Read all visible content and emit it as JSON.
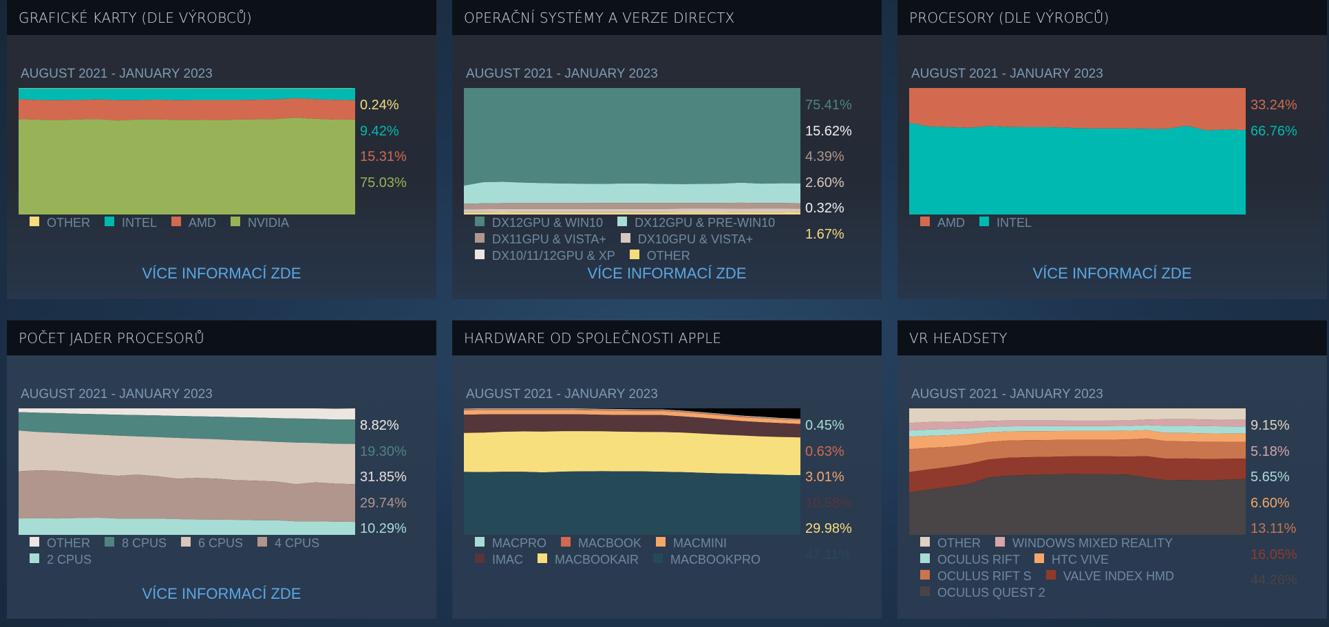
{
  "panels": [
    {
      "title": "GRAFICKÉ KARTY (DLE VÝROBCŮ)",
      "date_range": "AUGUST 2021 - JANUARY 2023",
      "link": "VÍCE INFORMACÍ ZDE"
    },
    {
      "title": "OPERAČNÍ SYSTÉMY A VERZE DIRECTX",
      "date_range": "AUGUST 2021 - JANUARY 2023",
      "link": "VÍCE INFORMACÍ ZDE"
    },
    {
      "title": "PROCESORY (DLE VÝROBCŮ)",
      "date_range": "AUGUST 2021 - JANUARY 2023",
      "link": "VÍCE INFORMACÍ ZDE"
    },
    {
      "title": "POČET JADER PROCESORŮ",
      "date_range": "AUGUST 2021 - JANUARY 2023",
      "link": "VÍCE INFORMACÍ ZDE"
    },
    {
      "title": "HARDWARE OD SPOLEČNOSTI APPLE",
      "date_range": "AUGUST 2021 - JANUARY 2023",
      "link": ""
    },
    {
      "title": "VR HEADSETY",
      "date_range": "AUGUST 2021 - JANUARY 2023",
      "link": ""
    }
  ],
  "chart_data": [
    {
      "type": "area",
      "stacked": true,
      "title": "GRAFICKÉ KARTY (DLE VÝROBCŮ)",
      "subtitle": "AUGUST 2021 - JANUARY 2023",
      "ylim": [
        0,
        100
      ],
      "x_count": 18,
      "series": [
        {
          "name": "OTHER",
          "color": "#f7dc7e",
          "current": "0.24%",
          "values": [
            0.3,
            0.3,
            0.3,
            0.3,
            0.3,
            0.3,
            0.3,
            0.3,
            0.3,
            0.3,
            0.3,
            0.3,
            0.3,
            0.3,
            0.3,
            0.3,
            0.3,
            0.24
          ]
        },
        {
          "name": "INTEL",
          "color": "#00bab2",
          "current": "9.42%",
          "values": [
            8.5,
            9.2,
            9.4,
            9.2,
            8.7,
            9.4,
            9.3,
            8.9,
            9.4,
            9.2,
            9.2,
            9.2,
            9.0,
            8.7,
            7.8,
            8.5,
            9.1,
            9.42
          ]
        },
        {
          "name": "AMD",
          "color": "#d36a4f",
          "current": "15.31%",
          "values": [
            15.8,
            15.5,
            15.6,
            15.4,
            15.5,
            16.0,
            15.3,
            15.6,
            15.5,
            15.7,
            15.8,
            15.5,
            15.5,
            15.5,
            15.3,
            15.6,
            15.6,
            15.31
          ]
        },
        {
          "name": "NVIDIA",
          "color": "#98b357",
          "current": "75.03%",
          "values": [
            75.4,
            75.0,
            74.7,
            75.1,
            75.5,
            74.3,
            75.1,
            75.2,
            74.8,
            74.8,
            74.7,
            75.0,
            75.2,
            75.5,
            76.6,
            75.6,
            75.0,
            75.03
          ]
        }
      ]
    },
    {
      "type": "area",
      "stacked": true,
      "title": "OPERAČNÍ SYSTÉMY A VERZE DIRECTX",
      "subtitle": "AUGUST 2021 - JANUARY 2023",
      "ylim": [
        0,
        100
      ],
      "x_count": 18,
      "series": [
        {
          "name": "DX12GPU & WIN10",
          "color": "#4e857f",
          "current": "75.41%",
          "values": [
            77.2,
            74.4,
            74.2,
            74.8,
            75.2,
            75.5,
            75.7,
            75.8,
            75.5,
            75.5,
            75.8,
            75.9,
            75.8,
            75.6,
            74.9,
            75.6,
            75.3,
            75.41
          ]
        },
        {
          "name": "DX12GPU & PRE-WIN10",
          "color": "#a8ddd6",
          "current": "15.62%",
          "values": [
            14.3,
            16.8,
            16.8,
            16.2,
            15.8,
            15.5,
            15.3,
            15.1,
            15.3,
            15.4,
            15.0,
            14.9,
            15.0,
            15.2,
            15.8,
            15.3,
            15.6,
            15.62
          ]
        },
        {
          "name": "DX11GPU & VISTA+",
          "color": "#b0968c",
          "current": "4.39%",
          "values": [
            4.3,
            4.5,
            4.5,
            4.6,
            4.6,
            4.6,
            4.6,
            4.7,
            4.8,
            4.7,
            4.7,
            4.6,
            4.6,
            4.6,
            4.6,
            4.5,
            4.5,
            4.39
          ]
        },
        {
          "name": "DX10GPU & VISTA+",
          "color": "#d8c7bb",
          "current": "2.60%",
          "values": [
            2.4,
            2.5,
            2.6,
            2.6,
            2.6,
            2.6,
            2.6,
            2.6,
            2.6,
            2.6,
            2.7,
            2.7,
            2.7,
            2.7,
            2.7,
            2.6,
            2.6,
            2.6
          ]
        },
        {
          "name": "DX10/11/12GPU & XP",
          "color": "#ede6e0",
          "current": "0.32%",
          "values": [
            0.4,
            0.4,
            0.4,
            0.4,
            0.4,
            0.4,
            0.4,
            0.4,
            0.4,
            0.4,
            0.4,
            0.4,
            0.4,
            0.4,
            0.4,
            0.4,
            0.4,
            0.32
          ]
        },
        {
          "name": "OTHER",
          "color": "#f7dc7e",
          "current": "1.67%",
          "values": [
            1.4,
            1.4,
            1.5,
            1.4,
            1.4,
            1.4,
            1.4,
            1.4,
            1.4,
            1.4,
            1.4,
            1.5,
            1.5,
            1.5,
            1.6,
            1.6,
            1.6,
            1.67
          ]
        }
      ]
    },
    {
      "type": "area",
      "stacked": true,
      "title": "PROCESORY (DLE VÝROBCŮ)",
      "subtitle": "AUGUST 2021 - JANUARY 2023",
      "ylim": [
        0,
        100
      ],
      "x_count": 18,
      "series": [
        {
          "name": "AMD",
          "color": "#d36a4f",
          "current": "33.24%",
          "values": [
            27.5,
            30.5,
            31.0,
            31.5,
            30.2,
            30.8,
            31.0,
            31.0,
            31.4,
            32.0,
            32.0,
            32.0,
            32.3,
            32.5,
            29.9,
            33.5,
            32.9,
            33.24
          ]
        },
        {
          "name": "INTEL",
          "color": "#00bab2",
          "current": "66.76%",
          "values": [
            72.5,
            69.5,
            69.0,
            68.5,
            69.8,
            69.2,
            69.0,
            69.0,
            68.6,
            68.0,
            68.0,
            68.0,
            67.7,
            67.5,
            70.1,
            66.5,
            67.1,
            66.76
          ]
        }
      ]
    },
    {
      "type": "area",
      "stacked": true,
      "title": "POČET JADER PROCESORŮ",
      "subtitle": "AUGUST 2021 - JANUARY 2023",
      "ylim": [
        0,
        100
      ],
      "x_count": 18,
      "series": [
        {
          "name": "OTHER",
          "color": "#ede6e0",
          "current": "8.82%",
          "values": [
            3.0,
            3.5,
            3.8,
            4.3,
            4.6,
            5.0,
            5.3,
            5.6,
            6.0,
            6.3,
            6.6,
            7.0,
            7.3,
            7.7,
            8.0,
            8.3,
            8.6,
            8.82
          ]
        },
        {
          "name": "8 CPUS",
          "color": "#4e857f",
          "current": "19.30%",
          "values": [
            14.5,
            15.2,
            15.5,
            15.8,
            16.2,
            16.5,
            16.8,
            17.1,
            17.3,
            17.6,
            17.8,
            18.1,
            18.4,
            18.7,
            19.0,
            19.0,
            19.2,
            19.3
          ]
        },
        {
          "name": "6 CPUS",
          "color": "#d8c7bb",
          "current": "31.85%",
          "values": [
            32.3,
            30.2,
            30.1,
            30.4,
            31.3,
            31.8,
            30.3,
            31.0,
            32.3,
            31.1,
            31.2,
            31.7,
            31.5,
            31.4,
            33.0,
            31.2,
            31.5,
            31.85
          ]
        },
        {
          "name": "4 CPUS",
          "color": "#b0968c",
          "current": "29.74%",
          "values": [
            37.2,
            38.0,
            37.6,
            36.2,
            34.3,
            33.8,
            34.7,
            33.4,
            31.9,
            32.8,
            32.3,
            31.3,
            31.2,
            30.7,
            29.3,
            30.8,
            30.0,
            29.74
          ]
        },
        {
          "name": "2 CPUS",
          "color": "#a8ddd6",
          "current": "10.29%",
          "values": [
            13.0,
            13.1,
            13.0,
            13.3,
            13.6,
            12.9,
            12.9,
            12.9,
            12.5,
            12.2,
            12.1,
            11.9,
            11.6,
            11.5,
            10.7,
            10.7,
            10.5,
            10.29
          ]
        }
      ]
    },
    {
      "type": "area",
      "stacked": true,
      "title": "HARDWARE OD SPOLEČNOSTI APPLE",
      "subtitle": "AUGUST 2021 - JANUARY 2023",
      "ylim": [
        0,
        100
      ],
      "x_count": 18,
      "series": [
        {
          "name": "MACPRO",
          "color": "#a8ddd6",
          "current": "0.45%",
          "values": [
            0.5,
            0.5,
            0.5,
            0.5,
            0.5,
            0.5,
            0.5,
            0.5,
            0.5,
            0.5,
            0.5,
            0.5,
            0.5,
            0.5,
            0.5,
            0.5,
            0.5,
            0.45
          ]
        },
        {
          "name": "MACBOOK",
          "color": "#d36a4f",
          "current": "0.63%",
          "values": [
            0.8,
            0.8,
            0.8,
            0.8,
            0.8,
            0.8,
            0.8,
            0.8,
            0.8,
            0.7,
            0.7,
            0.7,
            0.7,
            0.7,
            0.7,
            0.7,
            0.6,
            0.63
          ]
        },
        {
          "name": "MACMINI",
          "color": "#f5a66a",
          "current": "3.01%",
          "values": [
            3.5,
            3.5,
            3.4,
            3.4,
            3.4,
            3.4,
            3.4,
            3.4,
            3.3,
            3.3,
            3.3,
            3.3,
            3.2,
            3.2,
            3.1,
            3.1,
            3.0,
            3.01
          ]
        },
        {
          "name": "IMAC",
          "color": "#55363b",
          "current": "10.58%",
          "values": [
            14.4,
            14.4,
            13.8,
            13.5,
            13.6,
            13.3,
            13.2,
            13.0,
            13.2,
            13.3,
            13.4,
            12.8,
            12.5,
            12.0,
            11.4,
            11.2,
            10.9,
            10.58
          ]
        },
        {
          "name": "MACBOOKAIR",
          "color": "#f7df7e",
          "current": "29.98%",
          "values": [
            30.8,
            31.1,
            31.6,
            31.9,
            32.3,
            32.0,
            31.8,
            31.6,
            31.4,
            31.2,
            31.4,
            31.3,
            31.0,
            30.7,
            30.3,
            30.1,
            30.0,
            29.98
          ]
        },
        {
          "name": "MACBOOKPRO",
          "color": "#264958",
          "current": "47.11%",
          "values": [
            49.8,
            49.7,
            49.9,
            50.0,
            49.8,
            50.0,
            50.2,
            50.3,
            50.2,
            50.2,
            49.9,
            49.6,
            49.1,
            48.6,
            48.3,
            47.8,
            47.4,
            47.11
          ]
        }
      ]
    },
    {
      "type": "area",
      "stacked": true,
      "title": "VR HEADSETY",
      "subtitle": "AUGUST 2021 - JANUARY 2023",
      "ylim": [
        0,
        100
      ],
      "x_count": 18,
      "series": [
        {
          "name": "OTHER",
          "color": "#e0d2c0",
          "current": "9.15%",
          "values": [
            11.5,
            10.8,
            10.6,
            10.4,
            9.9,
            9.6,
            9.6,
            9.6,
            9.5,
            9.5,
            9.5,
            9.6,
            8.8,
            8.6,
            8.5,
            8.8,
            9.0,
            9.15
          ]
        },
        {
          "name": "WINDOWS MIXED REALITY",
          "color": "#d6a5a8",
          "current": "5.18%",
          "values": [
            6.0,
            6.0,
            5.8,
            5.5,
            4.8,
            4.6,
            4.5,
            4.5,
            4.5,
            4.5,
            4.5,
            4.2,
            4.5,
            5.2,
            5.3,
            5.3,
            5.2,
            5.18
          ]
        },
        {
          "name": "OCULUS RIFT",
          "color": "#a8ddd6",
          "current": "5.65%",
          "values": [
            5.0,
            4.9,
            4.8,
            4.5,
            4.3,
            4.0,
            4.0,
            4.0,
            3.9,
            3.9,
            3.9,
            3.9,
            4.0,
            5.6,
            5.6,
            5.7,
            5.7,
            5.65
          ]
        },
        {
          "name": "HTC VIVE",
          "color": "#f5a66a",
          "current": "6.60%",
          "values": [
            9.8,
            9.5,
            9.3,
            8.6,
            7.5,
            7.2,
            7.0,
            6.9,
            6.9,
            6.9,
            6.9,
            6.9,
            6.5,
            6.6,
            6.7,
            6.7,
            6.7,
            6.6
          ]
        },
        {
          "name": "OCULUS RIFT S",
          "color": "#c9754e",
          "current": "13.11%",
          "values": [
            18.0,
            17.0,
            15.8,
            14.9,
            14.0,
            13.7,
            13.5,
            13.3,
            13.2,
            13.1,
            13.1,
            13.5,
            14.0,
            13.8,
            13.5,
            13.5,
            13.3,
            13.11
          ]
        },
        {
          "name": "VALVE INDEX HMD",
          "color": "#8f3a2c",
          "current": "16.05%",
          "values": [
            16.0,
            16.0,
            15.9,
            15.9,
            14.2,
            14.1,
            14.0,
            14.0,
            14.0,
            14.2,
            14.2,
            14.2,
            17.0,
            17.0,
            17.0,
            17.0,
            16.5,
            16.05
          ]
        },
        {
          "name": "OCULUS QUEST 2",
          "color": "#494446",
          "current": "44.26%",
          "values": [
            33.7,
            35.8,
            38.8,
            40.2,
            45.3,
            46.8,
            47.4,
            47.7,
            48.0,
            47.9,
            47.9,
            47.7,
            45.2,
            43.2,
            43.4,
            43.0,
            43.6,
            44.26
          ]
        }
      ]
    }
  ],
  "value_label_colors": [
    [
      "#f7dc7e",
      "#00bab2",
      "#d36a4f",
      "#98b357"
    ],
    [
      "#4e857f",
      "#f0f0f0",
      "#b0968c",
      "#d8c7bb",
      "#f0f0f0",
      "#f7dc7e"
    ],
    [
      "#d36a4f",
      "#00bab2"
    ],
    [
      "#f0ece8",
      "#4e857f",
      "#e8e0d8",
      "#b0968c",
      "#a8ddd6"
    ],
    [
      "#a8ddd6",
      "#d36a4f",
      "#f5a66a",
      "#55363b",
      "#f7df7e",
      "#264958"
    ],
    [
      "#e0d2c0",
      "#d6a5a8",
      "#a8ddd6",
      "#f5a66a",
      "#c9754e",
      "#8f3a2c",
      "#494446"
    ]
  ]
}
